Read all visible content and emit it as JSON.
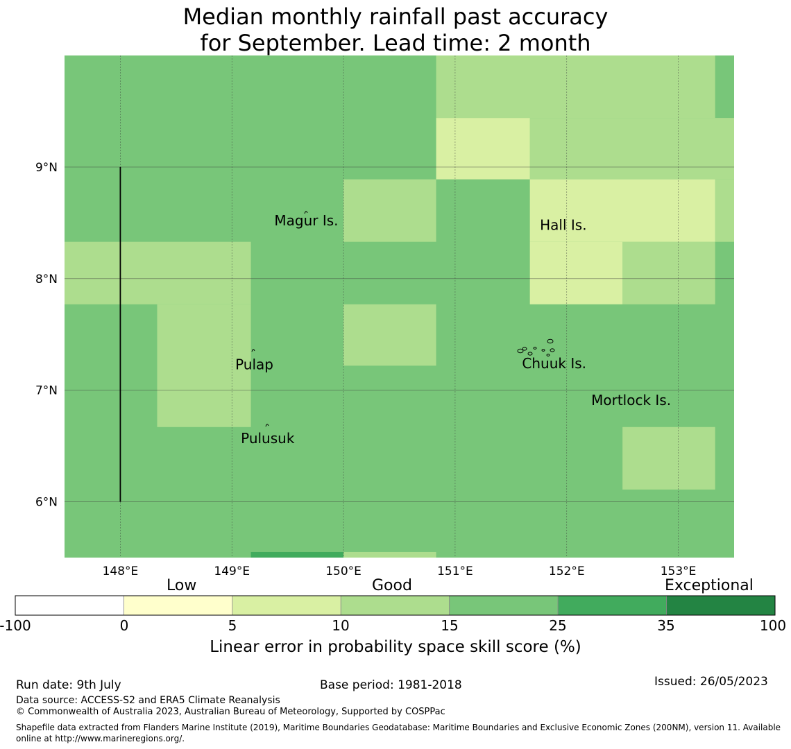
{
  "title_line1": "Median monthly rainfall past accuracy",
  "title_line2": "for September. Lead time: 2 month",
  "map": {
    "lon_range": [
      147.5,
      153.5
    ],
    "lat_range": [
      5.5,
      10.0
    ],
    "lon_ticks": [
      148,
      149,
      150,
      151,
      152,
      153
    ],
    "lon_tick_labels": [
      "148°E",
      "149°E",
      "150°E",
      "151°E",
      "152°E",
      "153°E"
    ],
    "lat_ticks": [
      6,
      7,
      8,
      9
    ],
    "lat_tick_labels": [
      "6°N",
      "7°N",
      "8°N",
      "9°N"
    ],
    "base_color": "#78c679",
    "skill_patches": [
      {
        "lon": [
          147.5,
          149.17
        ],
        "lat": [
          7.77,
          8.33
        ],
        "color": "#addd8e"
      },
      {
        "lon": [
          148.33,
          149.17
        ],
        "lat": [
          6.67,
          7.77
        ],
        "color": "#addd8e"
      },
      {
        "lon": [
          150.0,
          150.83
        ],
        "lat": [
          8.33,
          8.89
        ],
        "color": "#addd8e"
      },
      {
        "lon": [
          150.0,
          150.83
        ],
        "lat": [
          7.22,
          7.77
        ],
        "color": "#addd8e"
      },
      {
        "lon": [
          150.83,
          153.33
        ],
        "lat": [
          9.44,
          10.0
        ],
        "color": "#addd8e"
      },
      {
        "lon": [
          151.67,
          153.5
        ],
        "lat": [
          8.89,
          9.44
        ],
        "color": "#addd8e"
      },
      {
        "lon": [
          153.33,
          153.5
        ],
        "lat": [
          8.33,
          8.89
        ],
        "color": "#addd8e"
      },
      {
        "lon": [
          152.5,
          153.33
        ],
        "lat": [
          7.77,
          8.33
        ],
        "color": "#addd8e"
      },
      {
        "lon": [
          152.5,
          153.33
        ],
        "lat": [
          6.11,
          6.67
        ],
        "color": "#addd8e"
      },
      {
        "lon": [
          150.83,
          151.67
        ],
        "lat": [
          8.89,
          9.44
        ],
        "color": "#d9f0a3"
      },
      {
        "lon": [
          151.67,
          153.33
        ],
        "lat": [
          8.33,
          8.89
        ],
        "color": "#d9f0a3"
      },
      {
        "lon": [
          151.67,
          152.5
        ],
        "lat": [
          7.77,
          8.33
        ],
        "color": "#d9f0a3"
      },
      {
        "lon": [
          149.17,
          150.0
        ],
        "lat": [
          5.5,
          5.55
        ],
        "color": "#41ab5d"
      },
      {
        "lon": [
          150.0,
          150.83
        ],
        "lat": [
          5.5,
          5.55
        ],
        "color": "#addd8e"
      }
    ],
    "boundary_line": {
      "lon": 148.0,
      "lat": [
        6.0,
        9.0
      ]
    },
    "places": [
      {
        "name": "Magur Is.",
        "lon": 149.38,
        "lat": 8.52
      },
      {
        "name": "Hall Is.",
        "lon": 151.76,
        "lat": 8.48
      },
      {
        "name": "Pulap",
        "lon": 149.03,
        "lat": 7.23
      },
      {
        "name": "Chuuk Is.",
        "lon": 151.6,
        "lat": 7.24
      },
      {
        "name": "Mortlock Is.",
        "lon": 152.22,
        "lat": 6.91
      },
      {
        "name": "Pulusuk",
        "lon": 149.08,
        "lat": 6.57
      }
    ]
  },
  "colorbar": {
    "categories": [
      {
        "label": "Low",
        "pos": 0.21
      },
      {
        "label": "Good",
        "pos": 0.5
      },
      {
        "label": "Exceptional",
        "pos": 0.915
      }
    ],
    "bins": [
      {
        "color": "#ffffff"
      },
      {
        "color": "#ffffcc"
      },
      {
        "color": "#d9f0a3"
      },
      {
        "color": "#addd8e"
      },
      {
        "color": "#78c679"
      },
      {
        "color": "#41ab5d"
      },
      {
        "color": "#238443"
      }
    ],
    "tick_labels": [
      "-100",
      "0",
      "5",
      "10",
      "15",
      "25",
      "35",
      "100"
    ],
    "label": "Linear error in probability space skill score (%)"
  },
  "footer": {
    "run_date": "Run date: 9th July",
    "base_period": "Base period: 1981-2018",
    "issued": "Issued: 26/05/2023",
    "data_source": "Data source: ACCESS-S2 and ERA5 Climate Reanalysis",
    "copyright": "© Commonwealth of Australia 2023, Australian Bureau of Meteorology, Supported by COSPPac",
    "shapefile": "Shapefile data extracted from Flanders Marine Institute (2019), Maritime Boundaries Geodatabase: Maritime Boundaries and Exclusive Economic Zones (200NM), version 11. Available online at http://www.marineregions.org/."
  }
}
